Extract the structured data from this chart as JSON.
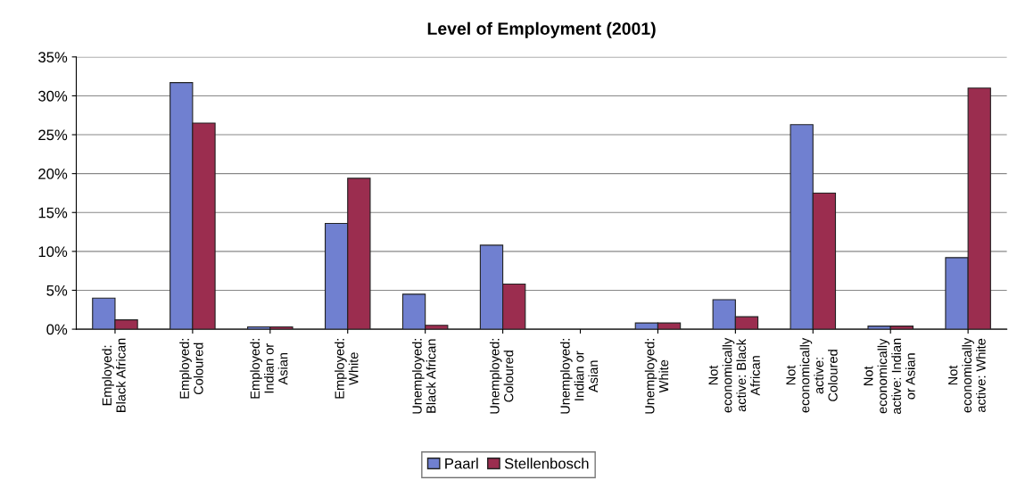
{
  "chart_data": {
    "type": "bar",
    "title": "Level of Employment (2001)",
    "categories": [
      "Employed:\nBlack African",
      "Employed:\nColoured",
      "Employed:\nIndian or\nAsian",
      "Employed:\nWhite",
      "Unemployed:\nBlack African",
      "Unemployed:\nColoured",
      "Unemployed:\nIndian or\nAsian",
      "Unemployed:\nWhite",
      "Not\neconomically\nactive: Black\nAfrican",
      "Not\neconomically\nactive:\nColoured",
      "Not\neconomically\nactive: Indian\nor Asian",
      "Not\neconomically\nactive: White"
    ],
    "series": [
      {
        "name": "Paarl",
        "color": "#7080d0",
        "values": [
          4.0,
          31.7,
          0.3,
          13.6,
          4.5,
          10.8,
          null,
          0.8,
          3.8,
          26.3,
          0.4,
          9.2
        ]
      },
      {
        "name": "Stellenbosch",
        "color": "#9b2d4f",
        "values": [
          1.2,
          26.5,
          0.3,
          19.4,
          0.5,
          5.8,
          null,
          0.8,
          1.6,
          17.5,
          0.4,
          31.0
        ]
      }
    ],
    "ylim": [
      0,
      35
    ],
    "yticks": [
      {
        "value": 0,
        "label": "0%"
      },
      {
        "value": 5,
        "label": "5%"
      },
      {
        "value": 10,
        "label": "10%"
      },
      {
        "value": 15,
        "label": "15%"
      },
      {
        "value": 20,
        "label": "20%"
      },
      {
        "value": 25,
        "label": "25%"
      },
      {
        "value": 30,
        "label": "30%"
      },
      {
        "value": 35,
        "label": "35%"
      }
    ],
    "grid": "y",
    "legend": "bottom"
  }
}
